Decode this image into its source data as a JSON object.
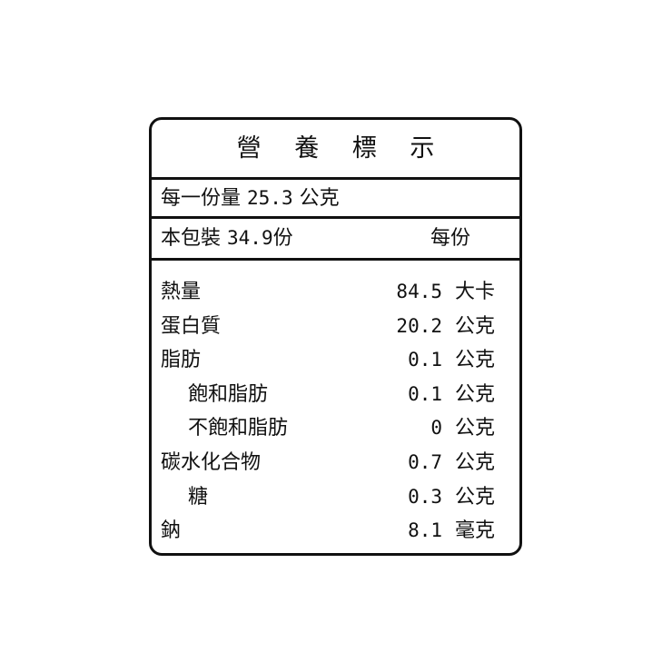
{
  "title": "營 養 標 示",
  "serving": {
    "label": "每一份量",
    "value": "25.3",
    "unit": "公克"
  },
  "package": {
    "label": "本包裝",
    "value": "34.9",
    "unit": "份",
    "per_label": "每份"
  },
  "nutrients": [
    {
      "name": "熱量",
      "value": "84.5",
      "unit": "大卡",
      "indent": false
    },
    {
      "name": "蛋白質",
      "value": "20.2",
      "unit": "公克",
      "indent": false
    },
    {
      "name": "脂肪",
      "value": "0.1",
      "unit": "公克",
      "indent": false
    },
    {
      "name": "飽和脂肪",
      "value": "0.1",
      "unit": "公克",
      "indent": true
    },
    {
      "name": "不飽和脂肪",
      "value": "0",
      "unit": "公克",
      "indent": true
    },
    {
      "name": "碳水化合物",
      "value": "0.7",
      "unit": "公克",
      "indent": false
    },
    {
      "name": "糖",
      "value": "0.3",
      "unit": "公克",
      "indent": true
    },
    {
      "name": "鈉",
      "value": "8.1",
      "unit": "毫克",
      "indent": false
    }
  ]
}
